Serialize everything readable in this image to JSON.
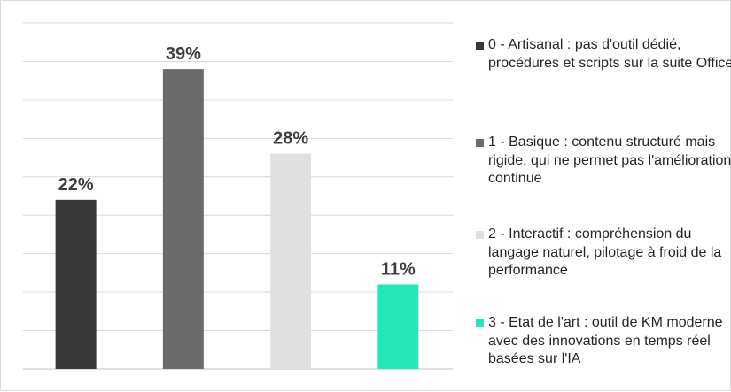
{
  "chart_data": {
    "type": "bar",
    "categories": [
      "0 - Artisanal : pas d'outil dédié, procédures et scripts sur la suite Office",
      "1 - Basique : contenu structuré mais rigide, qui ne permet pas l'amélioration continue",
      "2 - Interactif : compréhension du langage naturel, pilotage à froid de la performance",
      "3 - Etat de l'art : outil de KM moderne avec des innovations en temps réel basées sur l'IA"
    ],
    "values": [
      22,
      39,
      28,
      11
    ],
    "data_labels": [
      "22%",
      "39%",
      "28%",
      "11%"
    ],
    "colors": [
      "#383838",
      "#6b6b6b",
      "#e0e0e0",
      "#22e6b8"
    ],
    "ylim": [
      0,
      45
    ],
    "grid": true,
    "legend_position": "right",
    "title": "",
    "xlabel": "",
    "ylabel": ""
  }
}
